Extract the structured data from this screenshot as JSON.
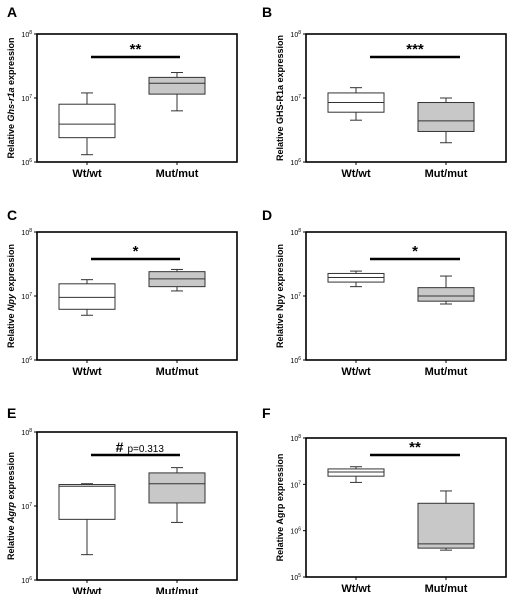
{
  "chart_data": [
    {
      "panel": "A",
      "type": "box",
      "ylabel_parts": [
        {
          "t": "Relative ",
          "i": false
        },
        {
          "t": "Ghs-r1a",
          "i": true
        },
        {
          "t": " expression",
          "i": false
        }
      ],
      "yscale": "log",
      "ylim": [
        1000000,
        100000000
      ],
      "ytick_labels": [
        {
          "value": 1000000,
          "base": "10",
          "exp": "6"
        },
        {
          "value": 10000000,
          "base": "10",
          "exp": "7"
        },
        {
          "value": 100000000,
          "base": "10",
          "exp": "8"
        }
      ],
      "categories": [
        "Wt/wt",
        "Mut/mut"
      ],
      "boxes": [
        {
          "category": "Wt/wt",
          "fill": "#ffffff",
          "whisker_low": 1300000,
          "q1": 2400000,
          "median": 3900000,
          "q3": 8000000,
          "whisker_high": 12000000
        },
        {
          "category": "Mut/mut",
          "fill": "#c8c8c8",
          "whisker_low": 6300000,
          "q1": 11500000,
          "median": 17000000,
          "q3": 21000000,
          "whisker_high": 25000000
        }
      ],
      "significance": {
        "mark": "**",
        "note": ""
      }
    },
    {
      "panel": "B",
      "type": "box",
      "ylabel_parts": [
        {
          "t": "Relative GHS-R1a expression",
          "i": false
        }
      ],
      "yscale": "log",
      "ylim": [
        1000000,
        100000000
      ],
      "ytick_labels": [
        {
          "value": 1000000,
          "base": "10",
          "exp": "6"
        },
        {
          "value": 10000000,
          "base": "10",
          "exp": "7"
        },
        {
          "value": 100000000,
          "base": "10",
          "exp": "8"
        }
      ],
      "categories": [
        "Wt/wt",
        "Mut/mut"
      ],
      "boxes": [
        {
          "category": "Wt/wt",
          "fill": "#ffffff",
          "whisker_low": 4500000,
          "q1": 6000000,
          "median": 8500000,
          "q3": 12000000,
          "whisker_high": 14500000
        },
        {
          "category": "Mut/mut",
          "fill": "#c8c8c8",
          "whisker_low": 2000000,
          "q1": 3000000,
          "median": 4400000,
          "q3": 8500000,
          "whisker_high": 10000000
        }
      ],
      "significance": {
        "mark": "***",
        "note": ""
      }
    },
    {
      "panel": "C",
      "type": "box",
      "ylabel_parts": [
        {
          "t": "Relative ",
          "i": false
        },
        {
          "t": "Npy",
          "i": true
        },
        {
          "t": " expression",
          "i": false
        }
      ],
      "yscale": "log",
      "ylim": [
        1000000,
        100000000
      ],
      "ytick_labels": [
        {
          "value": 1000000,
          "base": "10",
          "exp": "6"
        },
        {
          "value": 10000000,
          "base": "10",
          "exp": "7"
        },
        {
          "value": 100000000,
          "base": "10",
          "exp": "8"
        }
      ],
      "categories": [
        "Wt/wt",
        "Mut/mut"
      ],
      "boxes": [
        {
          "category": "Wt/wt",
          "fill": "#ffffff",
          "whisker_low": 5000000,
          "q1": 6200000,
          "median": 9500000,
          "q3": 15500000,
          "whisker_high": 18000000
        },
        {
          "category": "Mut/mut",
          "fill": "#c8c8c8",
          "whisker_low": 12000000,
          "q1": 14000000,
          "median": 18500000,
          "q3": 24000000,
          "whisker_high": 26000000
        }
      ],
      "significance": {
        "mark": "*",
        "note": ""
      }
    },
    {
      "panel": "D",
      "type": "box",
      "ylabel_parts": [
        {
          "t": "Relative Npy expression",
          "i": false
        }
      ],
      "yscale": "log",
      "ylim": [
        1000000,
        100000000
      ],
      "ytick_labels": [
        {
          "value": 1000000,
          "base": "10",
          "exp": "6"
        },
        {
          "value": 10000000,
          "base": "10",
          "exp": "7"
        },
        {
          "value": 100000000,
          "base": "10",
          "exp": "8"
        }
      ],
      "categories": [
        "Wt/wt",
        "Mut/mut"
      ],
      "boxes": [
        {
          "category": "Wt/wt",
          "fill": "#ffffff",
          "whisker_low": 14000000,
          "q1": 16500000,
          "median": 19500000,
          "q3": 22500000,
          "whisker_high": 24500000
        },
        {
          "category": "Mut/mut",
          "fill": "#c8c8c8",
          "whisker_low": 7500000,
          "q1": 8300000,
          "median": 10000000,
          "q3": 13500000,
          "whisker_high": 20500000
        }
      ],
      "significance": {
        "mark": "*",
        "note": ""
      }
    },
    {
      "panel": "E",
      "type": "box",
      "ylabel_parts": [
        {
          "t": "Relative ",
          "i": false
        },
        {
          "t": "Agrp",
          "i": true
        },
        {
          "t": " expression",
          "i": false
        }
      ],
      "yscale": "log",
      "ylim": [
        1000000,
        100000000
      ],
      "ytick_labels": [
        {
          "value": 1000000,
          "base": "10",
          "exp": "6"
        },
        {
          "value": 10000000,
          "base": "10",
          "exp": "7"
        },
        {
          "value": 100000000,
          "base": "10",
          "exp": "8"
        }
      ],
      "categories": [
        "Wt/wt",
        "Mut/mut"
      ],
      "boxes": [
        {
          "category": "Wt/wt",
          "fill": "#ffffff",
          "whisker_low": 2200000,
          "q1": 6600000,
          "median": 18500000,
          "q3": 19500000,
          "whisker_high": 20000000
        },
        {
          "category": "Mut/mut",
          "fill": "#c8c8c8",
          "whisker_low": 6000000,
          "q1": 11000000,
          "median": 20000000,
          "q3": 28000000,
          "whisker_high": 33000000
        }
      ],
      "significance": {
        "mark": "#",
        "note": "p=0.313"
      }
    },
    {
      "panel": "F",
      "type": "box",
      "ylabel_parts": [
        {
          "t": "Relative Agrp expression",
          "i": false
        }
      ],
      "yscale": "log",
      "ylim": [
        100000,
        100000000
      ],
      "ytick_labels": [
        {
          "value": 100000,
          "base": "10",
          "exp": "5"
        },
        {
          "value": 1000000,
          "base": "10",
          "exp": "6"
        },
        {
          "value": 10000000,
          "base": "10",
          "exp": "7"
        },
        {
          "value": 100000000,
          "base": "10",
          "exp": "8"
        }
      ],
      "categories": [
        "Wt/wt",
        "Mut/mut"
      ],
      "boxes": [
        {
          "category": "Wt/wt",
          "fill": "#ffffff",
          "whisker_low": 11000000,
          "q1": 15000000,
          "median": 18500000,
          "q3": 21500000,
          "whisker_high": 24000000
        },
        {
          "category": "Mut/mut",
          "fill": "#c8c8c8",
          "whisker_low": 380000,
          "q1": 420000,
          "median": 520000,
          "q3": 3900000,
          "whisker_high": 7200000
        }
      ],
      "significance": {
        "mark": "**",
        "note": ""
      }
    }
  ]
}
